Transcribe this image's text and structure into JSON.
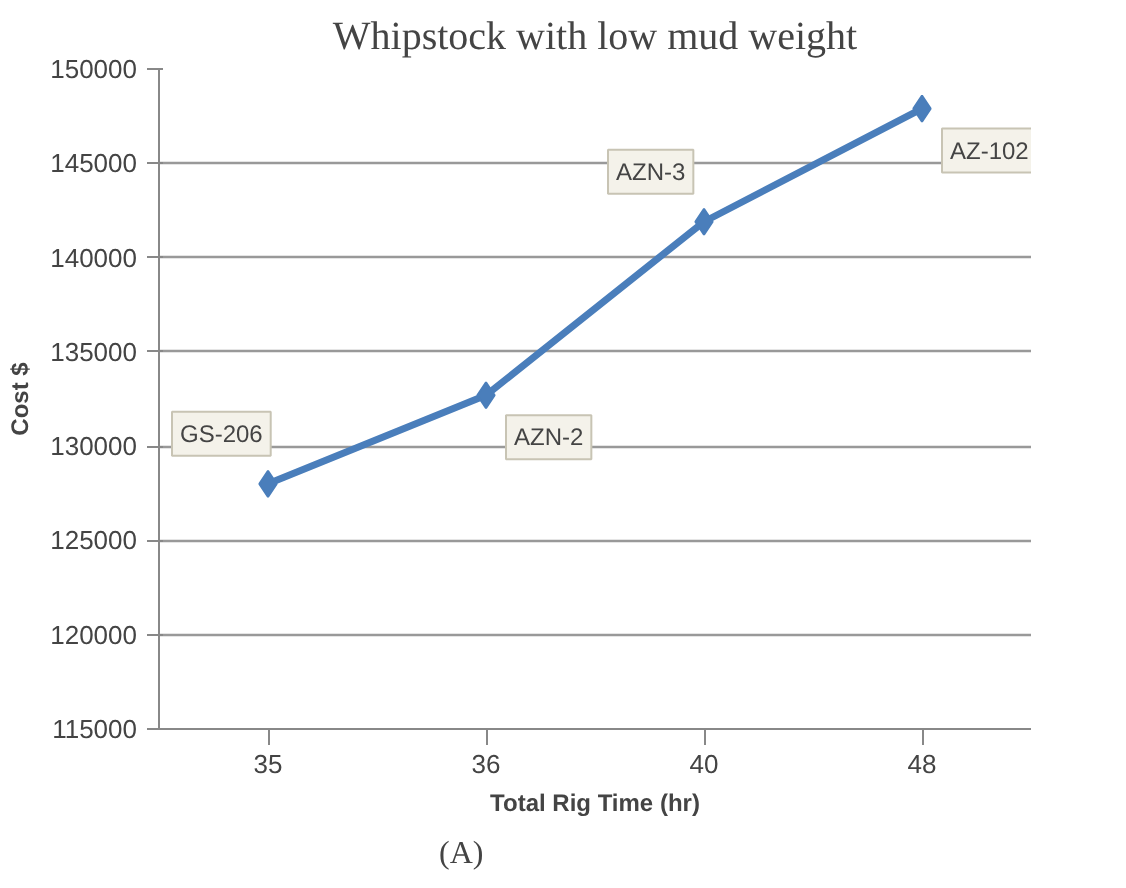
{
  "chart_data": {
    "type": "line",
    "title": "Whipstock with low mud weight",
    "xlabel": "Total Rig Time (hr)",
    "ylabel": "Cost $",
    "categories": [
      "35",
      "36",
      "40",
      "48"
    ],
    "series": [
      {
        "color": "#4a7ebb",
        "values": [
          128000,
          132700,
          141900,
          147900
        ]
      }
    ],
    "ylim": [
      115000,
      150000
    ],
    "yticks": [
      115000,
      120000,
      125000,
      130000,
      135000,
      140000,
      145000,
      150000
    ],
    "grid": "y",
    "marker": "diamond",
    "line_style": "solid",
    "annotations": [
      {
        "text": "GS-206",
        "x": "35",
        "y": 128000
      },
      {
        "text": "AZN-2",
        "x": "36",
        "y": 132700
      },
      {
        "text": "AZN-3",
        "x": "40",
        "y": 141900
      },
      {
        "text": "AZ-102",
        "x": "48",
        "y": 147900
      },
      "(A)"
    ]
  }
}
